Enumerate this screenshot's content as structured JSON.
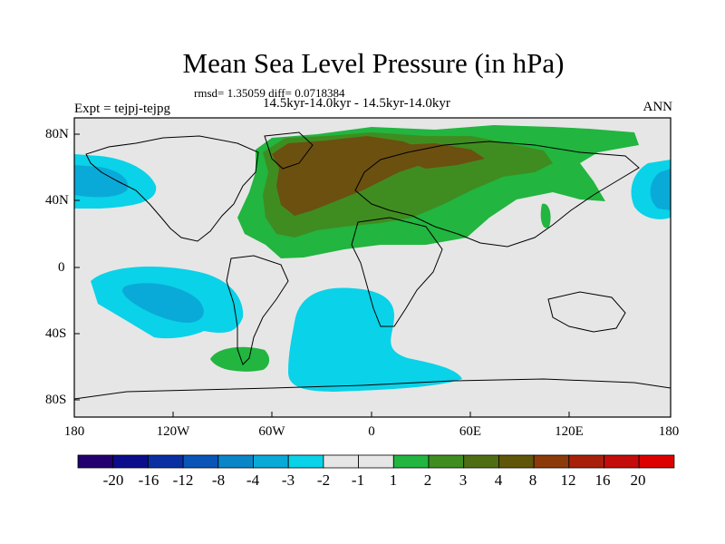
{
  "title": "Mean Sea Level Pressure (in hPa)",
  "stats": "rmsd= 1.35059 diff= 0.0718384",
  "period": "14.5kyr-14.0kyr - 14.5kyr-14.0kyr",
  "experiment": "Expt = tejpj-tejpg",
  "season": "ANN",
  "lat_labels": [
    "80N",
    "40N",
    "0",
    "40S",
    "80S"
  ],
  "lon_labels": [
    "180",
    "120W",
    "60W",
    "0",
    "60E",
    "120E",
    "180"
  ],
  "colorbar": {
    "labels": [
      "-20",
      "-16",
      "-12",
      "-8",
      "-4",
      "-3",
      "-2",
      "-1",
      "1",
      "2",
      "3",
      "4",
      "8",
      "12",
      "16",
      "20"
    ],
    "colors": [
      "#22006e",
      "#0b0d8a",
      "#0a2fa3",
      "#0a55b8",
      "#0a86c8",
      "#0aaad8",
      "#0ad2e8",
      "#e6e6e6",
      "#e6e6e6",
      "#22b540",
      "#3f8d20",
      "#4f6e14",
      "#60560a",
      "#8c3a0a",
      "#a8200a",
      "#c40c0a",
      "#dd0000"
    ]
  },
  "field_colors": {
    "neutral": "#e6e6e6",
    "pos1": "#22b540",
    "pos2": "#3f8d20",
    "pos3": "#6b5010",
    "neg1": "#0ad2e8",
    "neg2": "#0aaad8"
  }
}
